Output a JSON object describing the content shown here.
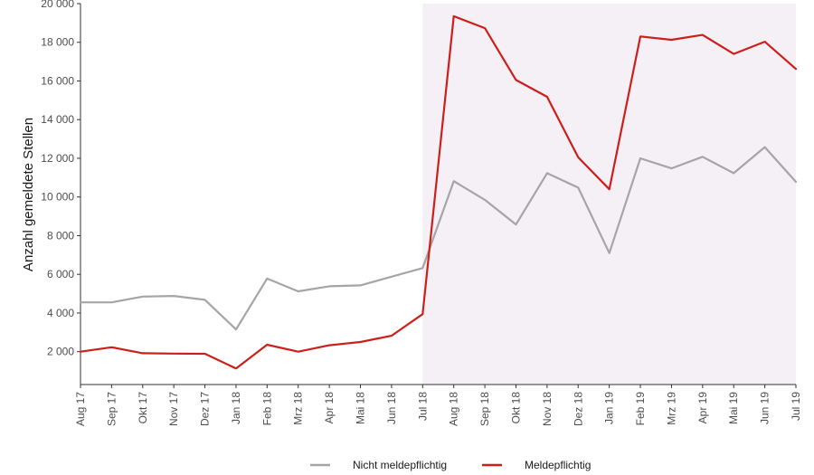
{
  "chart_data": {
    "type": "line",
    "title": "",
    "xlabel": "",
    "ylabel": "Anzahl gemeldete Stellen",
    "ylim": [
      300,
      20000
    ],
    "yticks": [
      2000,
      4000,
      6000,
      8000,
      10000,
      12000,
      14000,
      16000,
      18000,
      20000
    ],
    "ytick_labels": [
      "2 000",
      "4 000",
      "6 000",
      "8 000",
      "10 000",
      "12 000",
      "14 000",
      "16 000",
      "18 000",
      "20 000"
    ],
    "categories": [
      "Aug 17",
      "Sep 17",
      "Okt 17",
      "Nov 17",
      "Dez 17",
      "Jan 18",
      "Feb 18",
      "Mrz 18",
      "Apr 18",
      "Mai 18",
      "Jun 18",
      "Jul 18",
      "Aug 18",
      "Sep 18",
      "Okt 18",
      "Nov 18",
      "Dez 18",
      "Jan 19",
      "Feb 19",
      "Mrz 19",
      "Apr 19",
      "Mai 19",
      "Jun 19",
      "Jul 19"
    ],
    "highlight_range": [
      "Jul 18",
      "Jul 19"
    ],
    "highlight_color": "#f5f0f6",
    "grid": false,
    "legend_position": "bottom",
    "series": [
      {
        "name": "Nicht meldepflichtig",
        "color": "#a5a5a8",
        "values": [
          4550,
          4550,
          4850,
          4880,
          4680,
          3150,
          5780,
          5120,
          5380,
          5430,
          5880,
          6320,
          10820,
          9850,
          8580,
          11230,
          10480,
          7100,
          12000,
          11480,
          12080,
          11230,
          12580,
          10780
        ]
      },
      {
        "name": "Meldepflichtig",
        "color": "#cc1f1a",
        "values": [
          2000,
          2230,
          1920,
          1900,
          1890,
          1130,
          2360,
          2000,
          2330,
          2500,
          2820,
          3940,
          19350,
          18730,
          16050,
          15180,
          12050,
          10400,
          18300,
          18130,
          18380,
          17400,
          18030,
          16620
        ]
      }
    ]
  }
}
